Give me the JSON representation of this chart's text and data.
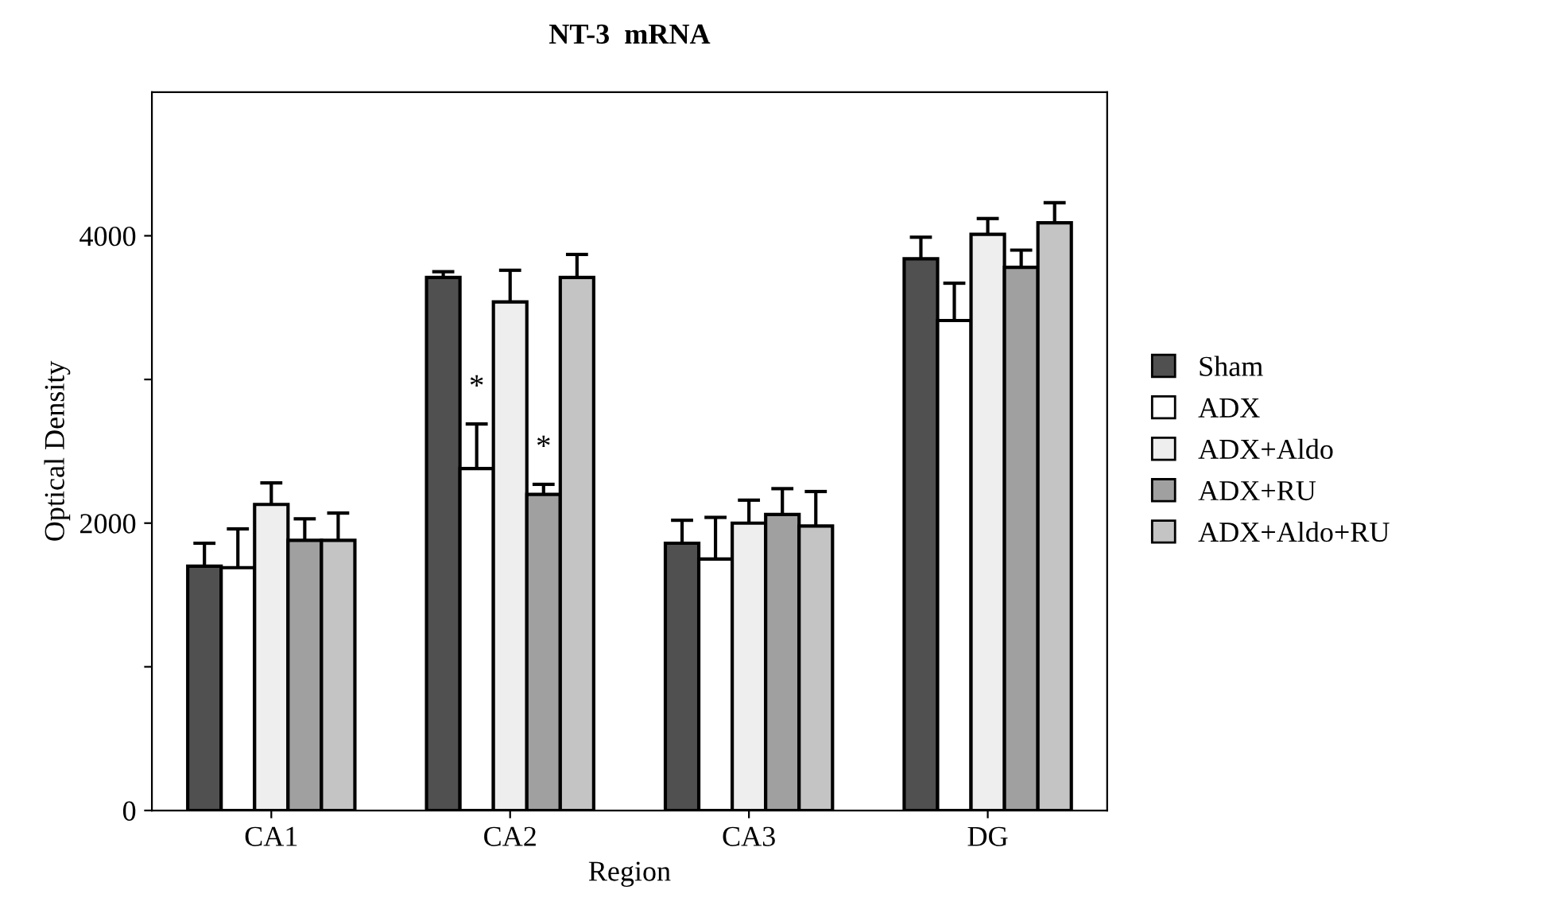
{
  "chart_data": {
    "type": "bar",
    "title": "NT-3  mRNA",
    "xlabel": "Region",
    "ylabel": "Optical Density",
    "categories": [
      "CA1",
      "CA2",
      "CA3",
      "DG"
    ],
    "series": [
      {
        "name": "Sham",
        "color": "#505050",
        "values": [
          1700,
          3710,
          1860,
          3840
        ],
        "errors": [
          160,
          40,
          160,
          150
        ]
      },
      {
        "name": "ADX",
        "color": "#ffffff",
        "values": [
          1690,
          2380,
          1750,
          3410
        ],
        "errors": [
          270,
          310,
          290,
          260
        ]
      },
      {
        "name": "ADX+Aldo",
        "color": "#eeeeee",
        "values": [
          2130,
          3540,
          2000,
          4010
        ],
        "errors": [
          150,
          220,
          160,
          110
        ]
      },
      {
        "name": "ADX+RU",
        "color": "#a0a0a0",
        "values": [
          1880,
          2200,
          2060,
          3780
        ],
        "errors": [
          150,
          70,
          180,
          120
        ]
      },
      {
        "name": "ADX+Aldo+RU",
        "color": "#c4c4c4",
        "values": [
          1880,
          3710,
          1980,
          4090
        ],
        "errors": [
          190,
          160,
          240,
          140
        ]
      }
    ],
    "annotations": [
      "*",
      "*"
    ],
    "ylim": [
      0,
      5000
    ],
    "yticks": [
      0,
      {
        "value": 1000,
        "label": null
      },
      2000,
      {
        "value": 3000,
        "label": null
      },
      4000
    ],
    "grid": false,
    "legend": "right"
  }
}
